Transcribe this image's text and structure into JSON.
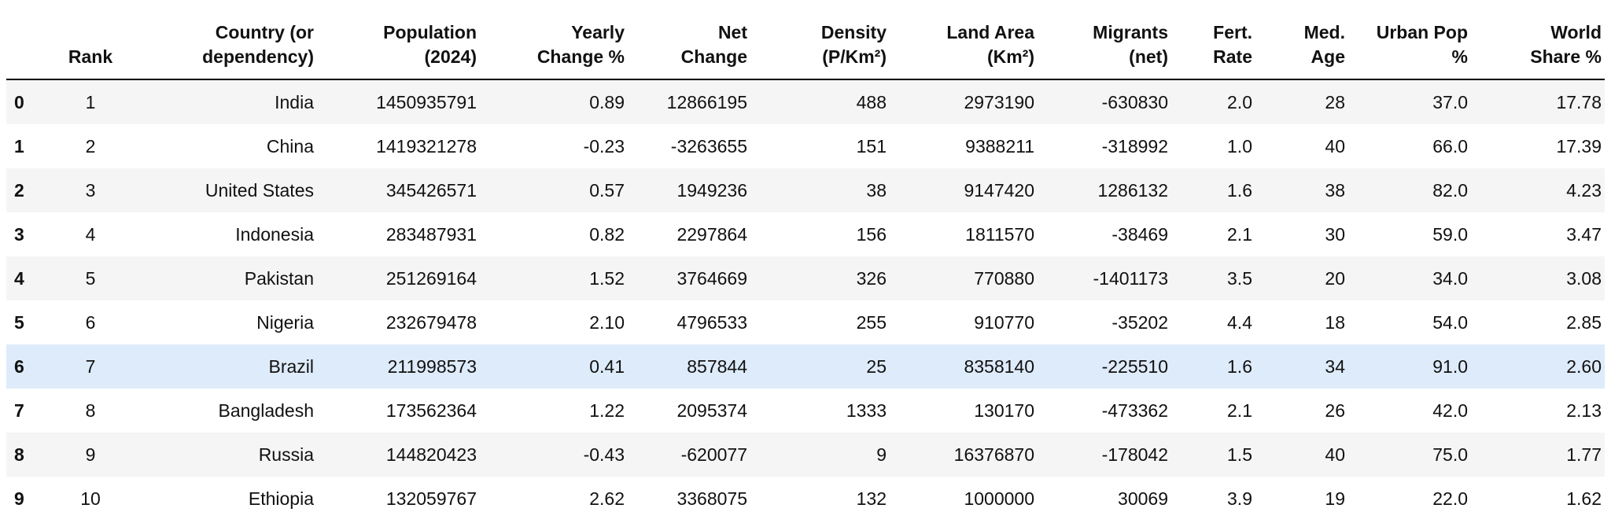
{
  "table": {
    "columns": [
      "",
      "Rank",
      "Country (or\ndependency)",
      "Population\n(2024)",
      "Yearly\nChange %",
      "Net\nChange",
      "Density\n(P/Km²)",
      "Land Area\n(Km²)",
      "Migrants\n(net)",
      "Fert.\nRate",
      "Med.\nAge",
      "Urban Pop\n%",
      "World\nShare %"
    ],
    "rows": [
      [
        "0",
        "1",
        "India",
        "1450935791",
        "0.89",
        "12866195",
        "488",
        "2973190",
        "-630830",
        "2.0",
        "28",
        "37.0",
        "17.78"
      ],
      [
        "1",
        "2",
        "China",
        "1419321278",
        "-0.23",
        "-3263655",
        "151",
        "9388211",
        "-318992",
        "1.0",
        "40",
        "66.0",
        "17.39"
      ],
      [
        "2",
        "3",
        "United States",
        "345426571",
        "0.57",
        "1949236",
        "38",
        "9147420",
        "1286132",
        "1.6",
        "38",
        "82.0",
        "4.23"
      ],
      [
        "3",
        "4",
        "Indonesia",
        "283487931",
        "0.82",
        "2297864",
        "156",
        "1811570",
        "-38469",
        "2.1",
        "30",
        "59.0",
        "3.47"
      ],
      [
        "4",
        "5",
        "Pakistan",
        "251269164",
        "1.52",
        "3764669",
        "326",
        "770880",
        "-1401173",
        "3.5",
        "20",
        "34.0",
        "3.08"
      ],
      [
        "5",
        "6",
        "Nigeria",
        "232679478",
        "2.10",
        "4796533",
        "255",
        "910770",
        "-35202",
        "4.4",
        "18",
        "54.0",
        "2.85"
      ],
      [
        "6",
        "7",
        "Brazil",
        "211998573",
        "0.41",
        "857844",
        "25",
        "8358140",
        "-225510",
        "1.6",
        "34",
        "91.0",
        "2.60"
      ],
      [
        "7",
        "8",
        "Bangladesh",
        "173562364",
        "1.22",
        "2095374",
        "1333",
        "130170",
        "-473362",
        "2.1",
        "26",
        "42.0",
        "2.13"
      ],
      [
        "8",
        "9",
        "Russia",
        "144820423",
        "-0.43",
        "-620077",
        "9",
        "16376870",
        "-178042",
        "1.5",
        "40",
        "75.0",
        "1.77"
      ],
      [
        "9",
        "10",
        "Ethiopia",
        "132059767",
        "2.62",
        "3368075",
        "132",
        "1000000",
        "30069",
        "3.9",
        "19",
        "22.0",
        "1.62"
      ]
    ],
    "hovered_row": 6
  },
  "colors": {
    "stripe": "#f5f5f5",
    "hover": "#deebfa",
    "header_rule": "#000000",
    "text": "#111111"
  }
}
